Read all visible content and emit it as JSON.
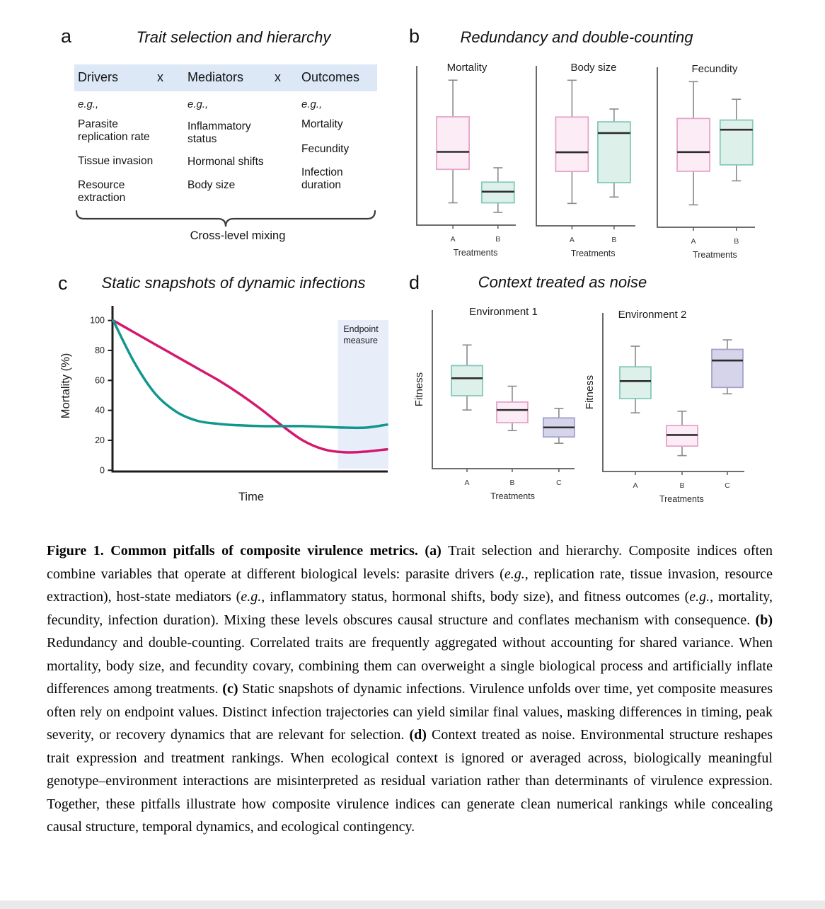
{
  "panels": {
    "a": {
      "label": "a",
      "title": "Trait selection and hierarchy",
      "multiply": "x",
      "columns": [
        {
          "header": "Drivers",
          "eg": "e.g.,",
          "items": [
            "Parasite\nreplication rate",
            "Tissue invasion",
            "Resource\nextraction"
          ]
        },
        {
          "header": "Mediators",
          "eg": "e.g.,",
          "items": [
            "Inflammatory\nstatus",
            "Hormonal shifts",
            "Body size"
          ]
        },
        {
          "header": "Outcomes",
          "eg": "e.g.,",
          "items": [
            "Mortality",
            "Fecundity",
            "Infection\nduration"
          ]
        }
      ],
      "brace_label": "Cross-level mixing"
    },
    "b": {
      "label": "b",
      "title": "Redundancy and double-counting"
    },
    "c": {
      "label": "c",
      "title": "Static snapshots of dynamic infections"
    },
    "d": {
      "label": "d",
      "title": "Context treated as noise"
    }
  },
  "colors": {
    "pink_fill": "#fcecf5",
    "pink_stroke": "#e6a4cb",
    "teal_fill": "#def0ea",
    "teal_stroke": "#84c9bc",
    "purple_fill": "#d6d4eb",
    "purple_stroke": "#a4a0ca",
    "median": "#2d2d2d",
    "whisker": "#8a8a8a",
    "axis_small": "#5a5a5a",
    "axis_big": "#1c1c1c",
    "line_pink": "#d4186f",
    "line_teal": "#12978e",
    "band": "#e7eefa",
    "header_band": "#dce8f6",
    "tick_text": "#222222"
  },
  "chart_data": [
    {
      "panel": "b",
      "type": "box",
      "title": "Redundancy and double-counting",
      "ylim": [
        0,
        100
      ],
      "subplots": [
        {
          "title": "Mortality",
          "xlabel": "Treatments",
          "categories": [
            "A",
            "B"
          ],
          "boxes": [
            {
              "category": "A",
              "color": "pink",
              "whisker_low": 14,
              "q1": 35,
              "median": 46,
              "q3": 68,
              "whisker_high": 91
            },
            {
              "category": "B",
              "color": "teal",
              "whisker_low": 8,
              "q1": 14,
              "median": 21,
              "q3": 27,
              "whisker_high": 36
            }
          ]
        },
        {
          "title": "Body size",
          "xlabel": "Treatments",
          "categories": [
            "A",
            "B"
          ],
          "boxes": [
            {
              "category": "A",
              "color": "pink",
              "whisker_low": 14,
              "q1": 34,
              "median": 46,
              "q3": 68,
              "whisker_high": 91
            },
            {
              "category": "B",
              "color": "teal",
              "whisker_low": 18,
              "q1": 27,
              "median": 58,
              "q3": 65,
              "whisker_high": 73
            }
          ]
        },
        {
          "title": "Fecundity",
          "xlabel": "Treatments",
          "categories": [
            "A",
            "B"
          ],
          "boxes": [
            {
              "category": "A",
              "color": "pink",
              "whisker_low": 14,
              "q1": 35,
              "median": 47,
              "q3": 68,
              "whisker_high": 91
            },
            {
              "category": "B",
              "color": "teal",
              "whisker_low": 29,
              "q1": 39,
              "median": 61,
              "q3": 67,
              "whisker_high": 80
            }
          ]
        }
      ]
    },
    {
      "panel": "c",
      "type": "line",
      "title": "Static snapshots of dynamic infections",
      "xlabel": "Time",
      "ylabel": "Mortality (%)",
      "ylim": [
        0,
        110
      ],
      "yticks": [
        0,
        20,
        40,
        60,
        80,
        100
      ],
      "x_range": [
        0,
        1
      ],
      "annotation_band": {
        "label": "Endpoint\nmeasure",
        "x_start": 0.82,
        "x_end": 1.0,
        "color_key": "band"
      },
      "series": [
        {
          "name": "trajectory-slow-early-decline",
          "color_key": "line_pink",
          "x": [
            0,
            0.077,
            0.154,
            0.231,
            0.308,
            0.385,
            0.462,
            0.538,
            0.615,
            0.692,
            0.769,
            0.846,
            0.923,
            1
          ],
          "y": [
            100,
            92,
            84,
            76,
            68,
            60,
            51,
            41,
            30,
            20,
            14,
            12,
            12.5,
            14
          ]
        },
        {
          "name": "trajectory-fast-early-decline",
          "color_key": "line_teal",
          "x": [
            0,
            0.077,
            0.154,
            0.231,
            0.308,
            0.385,
            0.462,
            0.538,
            0.615,
            0.692,
            0.769,
            0.846,
            0.923,
            1
          ],
          "y": [
            100,
            72,
            51,
            39,
            33,
            31,
            30,
            29.5,
            29.5,
            29.5,
            29,
            28.5,
            28.5,
            30.5
          ]
        }
      ]
    },
    {
      "panel": "d",
      "type": "box",
      "title": "Context treated as noise",
      "ylim": [
        0,
        100
      ],
      "subplots": [
        {
          "title": "Environment 1",
          "ylabel": "Fitness",
          "xlabel": "Treatments",
          "categories": [
            "A",
            "B",
            "C"
          ],
          "boxes": [
            {
              "category": "A",
              "color": "teal",
              "whisker_low": 37,
              "q1": 46,
              "median": 57,
              "q3": 65,
              "whisker_high": 78
            },
            {
              "category": "B",
              "color": "pink",
              "whisker_low": 24,
              "q1": 29,
              "median": 37,
              "q3": 42,
              "whisker_high": 52
            },
            {
              "category": "C",
              "color": "purple",
              "whisker_low": 16,
              "q1": 20,
              "median": 26,
              "q3": 32,
              "whisker_high": 38
            }
          ]
        },
        {
          "title": "Environment 2",
          "ylabel": "Fitness",
          "xlabel": "Treatments",
          "categories": [
            "A",
            "B",
            "C"
          ],
          "boxes": [
            {
              "category": "A",
              "color": "teal",
              "whisker_low": 37,
              "q1": 46,
              "median": 57,
              "q3": 66,
              "whisker_high": 79
            },
            {
              "category": "B",
              "color": "pink",
              "whisker_low": 10,
              "q1": 16,
              "median": 23,
              "q3": 29,
              "whisker_high": 38
            },
            {
              "category": "C",
              "color": "purple",
              "whisker_low": 49,
              "q1": 53,
              "median": 70,
              "q3": 77,
              "whisker_high": 83
            }
          ]
        }
      ]
    }
  ],
  "caption": {
    "segments": [
      {
        "text": "Figure 1. Common pitfalls of composite virulence metrics. (a) ",
        "bold": true,
        "italic": false
      },
      {
        "text": "Trait selection and hierarchy. Composite indices often combine variables that operate at different biological levels: parasite drivers (",
        "bold": false,
        "italic": false
      },
      {
        "text": "e.g.",
        "bold": false,
        "italic": true
      },
      {
        "text": ", replication rate, tissue invasion, resource extraction), host-state mediators (",
        "bold": false,
        "italic": false
      },
      {
        "text": "e.g.",
        "bold": false,
        "italic": true
      },
      {
        "text": ", inflammatory status, hormonal shifts, body size), and fitness outcomes (",
        "bold": false,
        "italic": false
      },
      {
        "text": "e.g.",
        "bold": false,
        "italic": true
      },
      {
        "text": ", mortality, fecundity, infection duration). Mixing these levels obscures causal structure and conflates mechanism with consequence. ",
        "bold": false,
        "italic": false
      },
      {
        "text": "(b) ",
        "bold": true,
        "italic": false
      },
      {
        "text": "Redundancy and double-counting. Correlated traits are frequently aggregated without accounting for shared variance. When mortality, body size, and fecundity covary, combining them can overweight a single biological process and artificially inflate differences among treatments. ",
        "bold": false,
        "italic": false
      },
      {
        "text": "(c) ",
        "bold": true,
        "italic": false
      },
      {
        "text": "Static snapshots of dynamic infections. Virulence unfolds over time, yet composite measures often rely on endpoint values. Distinct infection trajectories can yield similar final values, masking differences in timing, peak severity, or recovery dynamics that are relevant for selection. ",
        "bold": false,
        "italic": false
      },
      {
        "text": "(d) ",
        "bold": true,
        "italic": false
      },
      {
        "text": "Context treated as noise. Environmental structure reshapes trait expression and treatment rankings. When ecological context is ignored or averaged across, biologically meaningful genotype–environment interactions are misinterpreted as residual variation rather than determinants of virulence expression. Together, these pitfalls illustrate how composite virulence indices can generate clean numerical rankings while concealing causal structure, temporal dynamics, and ecological contingency.",
        "bold": false,
        "italic": false
      }
    ]
  }
}
